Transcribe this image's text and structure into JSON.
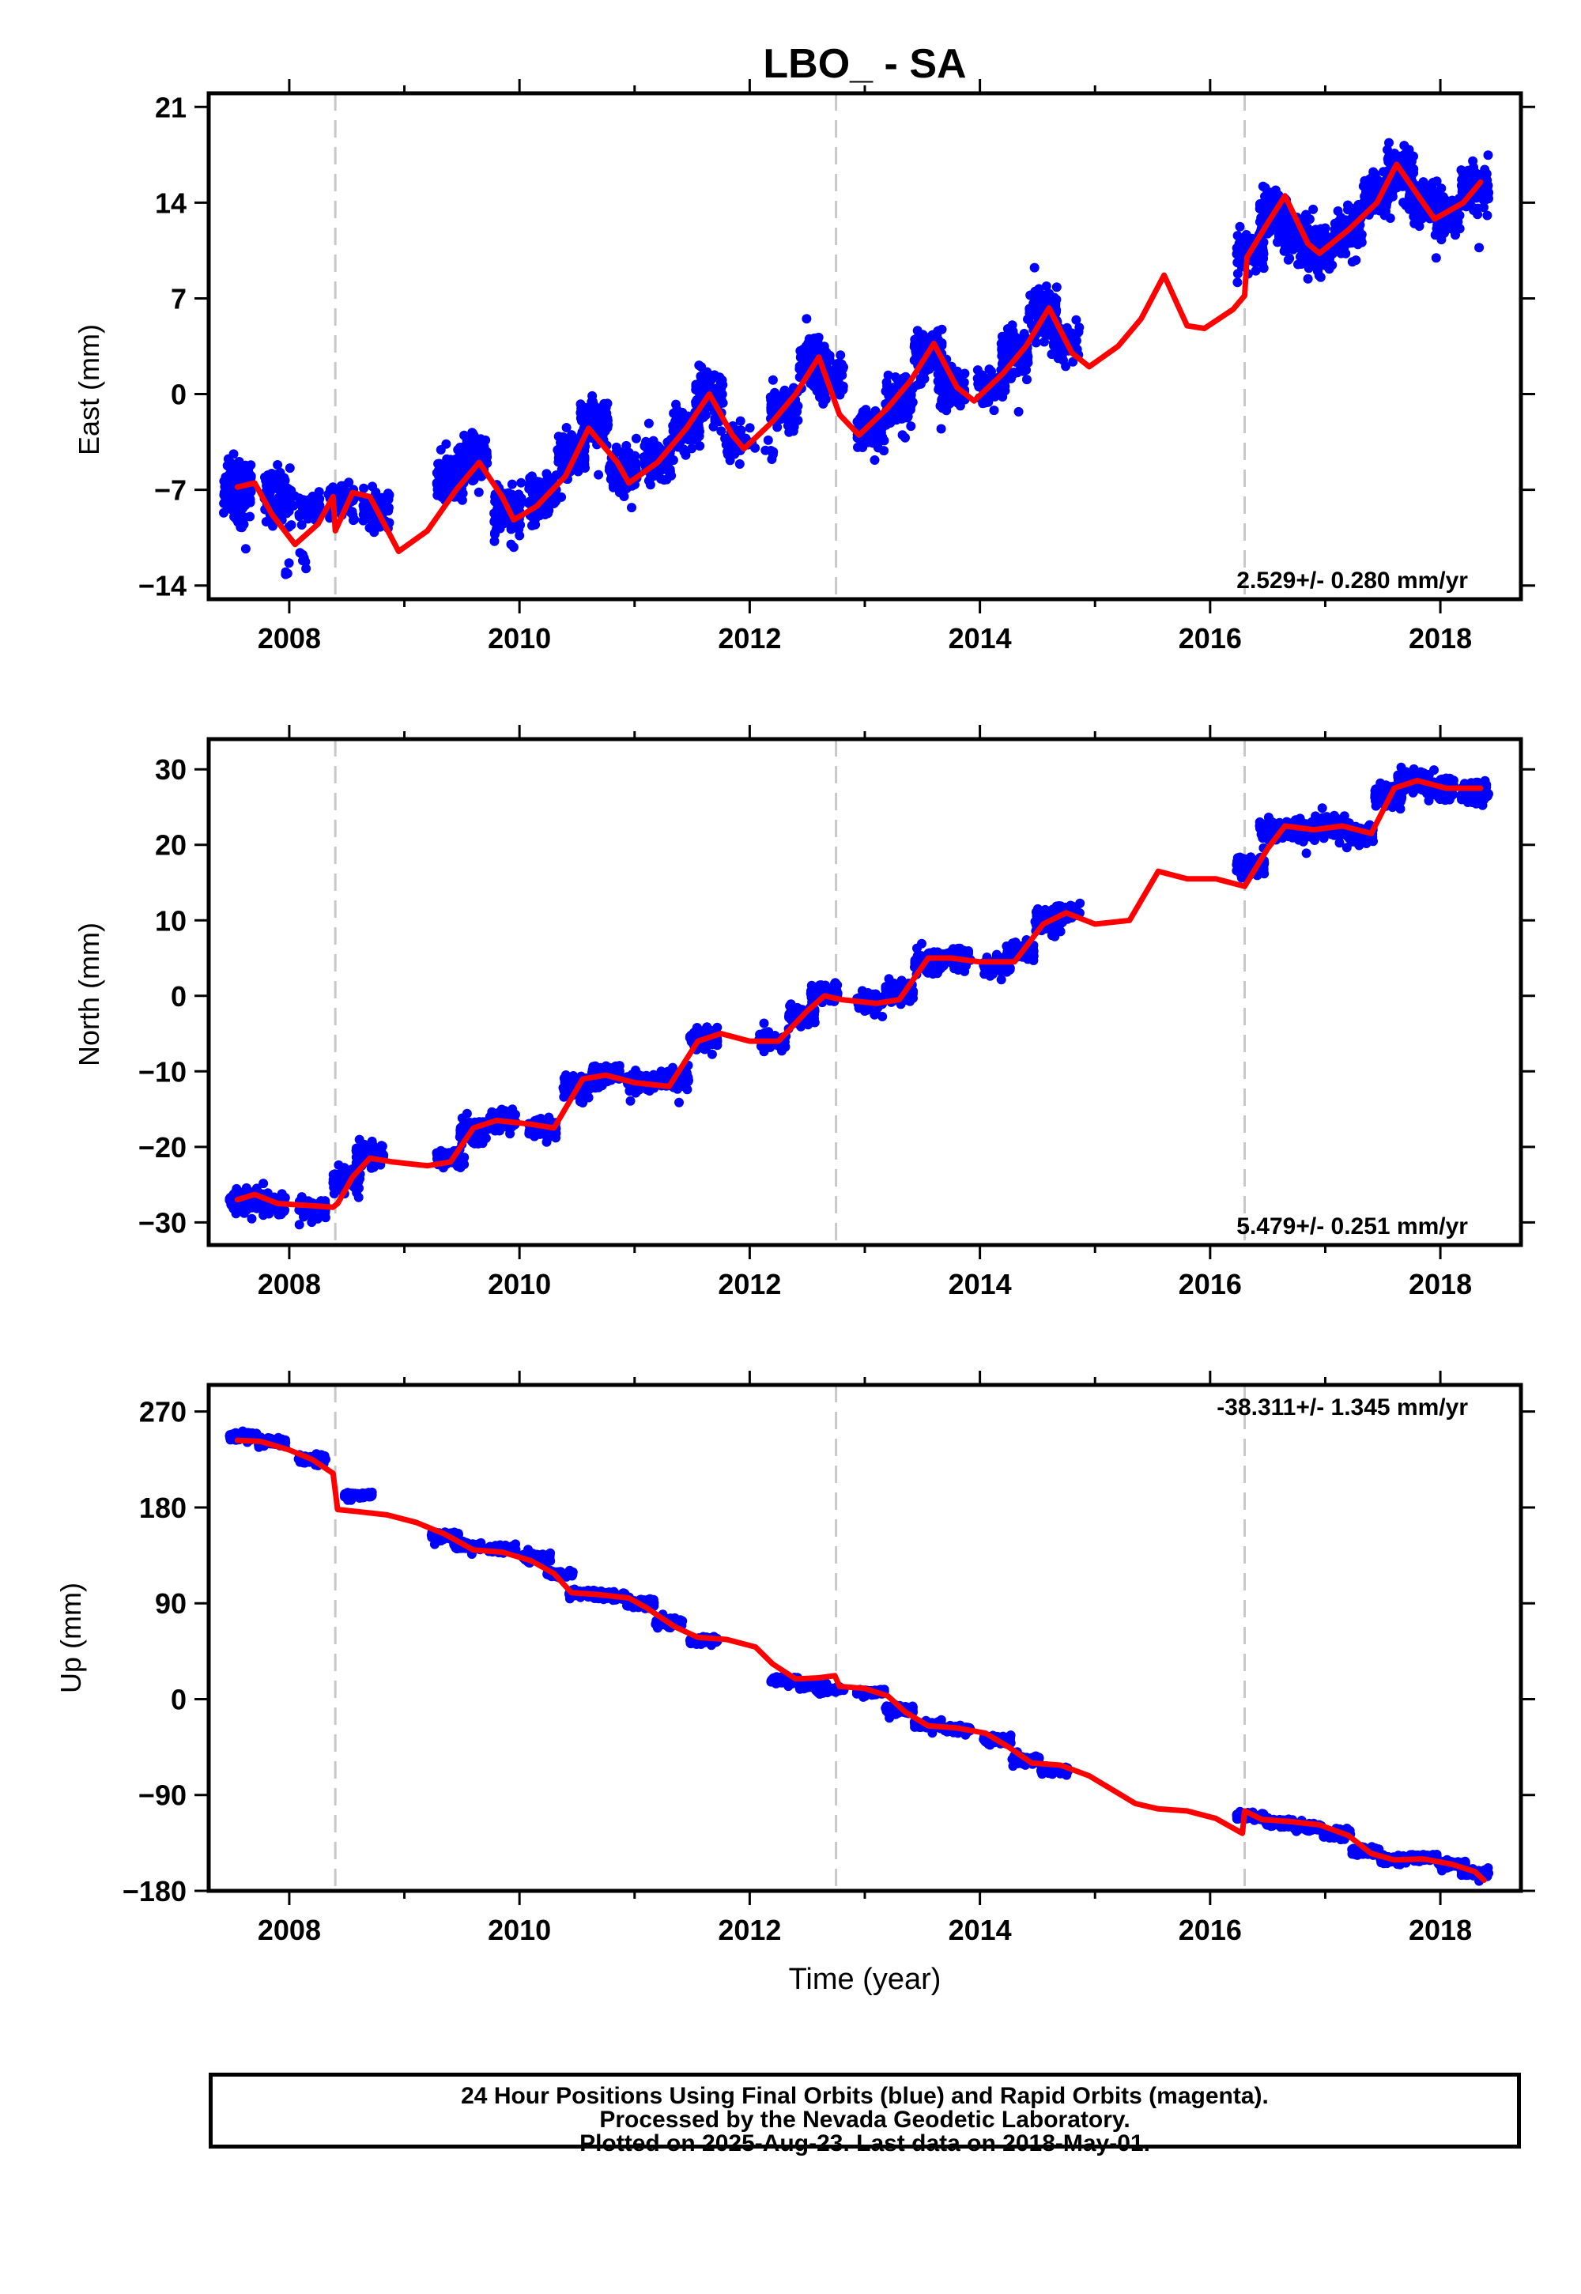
{
  "title": "LBO_ - SA",
  "xlabel": "Time (year)",
  "footer": {
    "line1": "24 Hour Positions Using Final Orbits (blue) and Rapid Orbits (magenta).",
    "line2": "Processed by the Nevada Geodetic Laboratory.",
    "line3": "Plotted on 2025-Aug-23. Last data on 2018-May-01."
  },
  "colors": {
    "final_orbits": "#0000ff",
    "model_fit": "#ff0000",
    "equipment_change": "#c8c8c8",
    "frame": "#000000"
  },
  "chart_data": [
    {
      "type": "scatter",
      "id": "east",
      "ylabel": "East (mm)",
      "xlim": [
        2007.3,
        2018.7
      ],
      "ylim": [
        -15,
        22
      ],
      "xticks": [
        2008,
        2010,
        2012,
        2014,
        2016,
        2018
      ],
      "yticks": [
        -14,
        -7,
        0,
        7,
        14,
        21
      ],
      "vlines": [
        2008.4,
        2012.75,
        2016.3
      ],
      "rate_text": "2.529+/- 0.280 mm/yr",
      "rate_position": "bottom-right",
      "model_knots": [
        [
          2007.55,
          -6.8
        ],
        [
          2007.7,
          -6.5
        ],
        [
          2007.85,
          -8.8
        ],
        [
          2008.05,
          -11.0
        ],
        [
          2008.25,
          -9.5
        ],
        [
          2008.38,
          -7.5
        ],
        [
          2008.4,
          -10.0
        ],
        [
          2008.55,
          -7.2
        ],
        [
          2008.7,
          -7.5
        ],
        [
          2008.95,
          -11.5
        ],
        [
          2009.2,
          -10.0
        ],
        [
          2009.45,
          -7.0
        ],
        [
          2009.65,
          -5.0
        ],
        [
          2009.85,
          -7.5
        ],
        [
          2009.95,
          -9.2
        ],
        [
          2010.15,
          -8.2
        ],
        [
          2010.4,
          -6.0
        ],
        [
          2010.6,
          -2.5
        ],
        [
          2010.85,
          -5.0
        ],
        [
          2010.95,
          -6.5
        ],
        [
          2011.2,
          -5.0
        ],
        [
          2011.45,
          -2.5
        ],
        [
          2011.65,
          0.0
        ],
        [
          2011.85,
          -3.0
        ],
        [
          2011.95,
          -4.0
        ],
        [
          2012.2,
          -2.0
        ],
        [
          2012.4,
          0.0
        ],
        [
          2012.6,
          2.7
        ],
        [
          2012.78,
          -1.5
        ],
        [
          2012.95,
          -3.0
        ],
        [
          2013.2,
          -1.0
        ],
        [
          2013.4,
          1.0
        ],
        [
          2013.6,
          3.7
        ],
        [
          2013.8,
          0.5
        ],
        [
          2013.95,
          -0.5
        ],
        [
          2014.2,
          1.5
        ],
        [
          2014.4,
          3.5
        ],
        [
          2014.6,
          6.3
        ],
        [
          2014.8,
          3.0
        ],
        [
          2014.95,
          2.0
        ],
        [
          2015.2,
          3.5
        ],
        [
          2015.4,
          5.5
        ],
        [
          2015.6,
          8.7
        ],
        [
          2015.8,
          5.0
        ],
        [
          2015.95,
          4.8
        ],
        [
          2016.2,
          6.2
        ],
        [
          2016.3,
          7.2
        ],
        [
          2016.32,
          10.0
        ],
        [
          2016.5,
          12.5
        ],
        [
          2016.65,
          14.5
        ],
        [
          2016.85,
          11.0
        ],
        [
          2016.95,
          10.3
        ],
        [
          2017.2,
          12.0
        ],
        [
          2017.45,
          14.0
        ],
        [
          2017.62,
          16.8
        ],
        [
          2017.85,
          14.0
        ],
        [
          2017.95,
          12.8
        ],
        [
          2018.2,
          14.0
        ],
        [
          2018.35,
          15.5
        ]
      ],
      "data_points": [
        [
          2007.55,
          -7.0,
          2.5,
          180
        ],
        [
          2007.9,
          -7.5,
          2.5,
          90
        ],
        [
          2008.05,
          -12.5,
          1.2,
          10
        ],
        [
          2008.15,
          -8.5,
          1.6,
          40
        ],
        [
          2008.45,
          -7.8,
          1.6,
          60
        ],
        [
          2008.75,
          -8.5,
          1.8,
          70
        ],
        [
          2009.4,
          -6.0,
          2.2,
          120
        ],
        [
          2009.6,
          -4.5,
          2.0,
          120
        ],
        [
          2009.9,
          -8.5,
          2.0,
          110
        ],
        [
          2010.2,
          -7.5,
          2.0,
          120
        ],
        [
          2010.45,
          -4.5,
          2.0,
          110
        ],
        [
          2010.65,
          -2.0,
          2.0,
          120
        ],
        [
          2010.9,
          -5.5,
          2.0,
          110
        ],
        [
          2011.2,
          -4.8,
          1.8,
          110
        ],
        [
          2011.45,
          -2.5,
          2.0,
          110
        ],
        [
          2011.65,
          -0.3,
          2.2,
          110
        ],
        [
          2011.9,
          -3.5,
          1.6,
          30
        ],
        [
          2012.1,
          -4.0,
          1.0,
          8
        ],
        [
          2012.3,
          -1.0,
          1.8,
          100
        ],
        [
          2012.55,
          2.5,
          2.0,
          120
        ],
        [
          2012.7,
          1.0,
          2.0,
          60
        ],
        [
          2013.05,
          -2.5,
          2.0,
          90
        ],
        [
          2013.3,
          -0.5,
          2.0,
          110
        ],
        [
          2013.55,
          3.0,
          2.2,
          120
        ],
        [
          2013.75,
          0.5,
          2.0,
          90
        ],
        [
          2014.1,
          0.5,
          2.0,
          70
        ],
        [
          2014.3,
          3.0,
          2.2,
          100
        ],
        [
          2014.55,
          6.0,
          2.2,
          120
        ],
        [
          2014.75,
          4.0,
          2.0,
          60
        ],
        [
          2016.35,
          10.5,
          2.0,
          100
        ],
        [
          2016.55,
          13.0,
          2.0,
          110
        ],
        [
          2016.75,
          11.5,
          2.0,
          110
        ],
        [
          2016.95,
          10.5,
          2.0,
          110
        ],
        [
          2017.2,
          12.0,
          2.0,
          110
        ],
        [
          2017.45,
          14.5,
          2.0,
          110
        ],
        [
          2017.65,
          16.5,
          2.0,
          110
        ],
        [
          2017.85,
          14.0,
          2.0,
          110
        ],
        [
          2018.05,
          13.0,
          2.0,
          90
        ],
        [
          2018.3,
          15.0,
          2.2,
          110
        ]
      ]
    },
    {
      "type": "scatter",
      "id": "north",
      "ylabel": "North (mm)",
      "xlim": [
        2007.3,
        2018.7
      ],
      "ylim": [
        -33,
        34
      ],
      "xticks": [
        2008,
        2010,
        2012,
        2014,
        2016,
        2018
      ],
      "yticks": [
        -30,
        -20,
        -10,
        0,
        10,
        20,
        30
      ],
      "vlines": [
        2008.4,
        2012.75,
        2016.3
      ],
      "rate_text": "5.479+/- 0.251 mm/yr",
      "rate_position": "bottom-right",
      "model_knots": [
        [
          2007.55,
          -27.0
        ],
        [
          2007.7,
          -26.3
        ],
        [
          2007.9,
          -27.5
        ],
        [
          2008.2,
          -27.8
        ],
        [
          2008.38,
          -28.0
        ],
        [
          2008.42,
          -27.5
        ],
        [
          2008.55,
          -24.0
        ],
        [
          2008.7,
          -21.5
        ],
        [
          2008.9,
          -22.0
        ],
        [
          2009.2,
          -22.5
        ],
        [
          2009.4,
          -22.0
        ],
        [
          2009.6,
          -17.5
        ],
        [
          2009.8,
          -16.5
        ],
        [
          2010.1,
          -17.0
        ],
        [
          2010.3,
          -17.5
        ],
        [
          2010.55,
          -11.0
        ],
        [
          2010.75,
          -10.5
        ],
        [
          2011.0,
          -11.5
        ],
        [
          2011.3,
          -12.0
        ],
        [
          2011.55,
          -6.0
        ],
        [
          2011.75,
          -5.0
        ],
        [
          2012.0,
          -6.0
        ],
        [
          2012.25,
          -6.0
        ],
        [
          2012.5,
          -2.0
        ],
        [
          2012.65,
          0.0
        ],
        [
          2012.8,
          -0.5
        ],
        [
          2013.1,
          -1.0
        ],
        [
          2013.3,
          -0.5
        ],
        [
          2013.55,
          5.0
        ],
        [
          2013.75,
          5.0
        ],
        [
          2014.0,
          4.5
        ],
        [
          2014.3,
          4.5
        ],
        [
          2014.55,
          9.5
        ],
        [
          2014.75,
          11.0
        ],
        [
          2015.0,
          9.5
        ],
        [
          2015.3,
          10.0
        ],
        [
          2015.55,
          16.5
        ],
        [
          2015.8,
          15.5
        ],
        [
          2016.05,
          15.5
        ],
        [
          2016.3,
          14.5
        ],
        [
          2016.5,
          19.5
        ],
        [
          2016.65,
          22.5
        ],
        [
          2016.9,
          22.0
        ],
        [
          2017.15,
          22.5
        ],
        [
          2017.4,
          21.5
        ],
        [
          2017.6,
          27.5
        ],
        [
          2017.8,
          28.5
        ],
        [
          2018.05,
          27.5
        ],
        [
          2018.35,
          27.5
        ]
      ],
      "data_points": [
        [
          2007.6,
          -27.0,
          1.8,
          110
        ],
        [
          2007.85,
          -27.5,
          1.8,
          90
        ],
        [
          2008.2,
          -28.2,
          1.8,
          70
        ],
        [
          2008.5,
          -24.5,
          2.0,
          70
        ],
        [
          2008.7,
          -21.0,
          1.8,
          90
        ],
        [
          2009.4,
          -21.5,
          1.6,
          60
        ],
        [
          2009.6,
          -18.0,
          1.6,
          120
        ],
        [
          2009.85,
          -16.5,
          1.6,
          110
        ],
        [
          2010.2,
          -17.5,
          1.6,
          110
        ],
        [
          2010.5,
          -12.0,
          1.6,
          110
        ],
        [
          2010.75,
          -10.5,
          1.6,
          110
        ],
        [
          2011.05,
          -11.5,
          1.6,
          110
        ],
        [
          2011.35,
          -11.0,
          1.6,
          110
        ],
        [
          2011.6,
          -5.5,
          1.6,
          110
        ],
        [
          2012.2,
          -6.0,
          1.6,
          40
        ],
        [
          2012.45,
          -2.5,
          1.6,
          100
        ],
        [
          2012.65,
          0.5,
          1.6,
          60
        ],
        [
          2013.05,
          -1.0,
          1.6,
          60
        ],
        [
          2013.3,
          0.5,
          1.6,
          110
        ],
        [
          2013.55,
          4.5,
          1.6,
          110
        ],
        [
          2013.8,
          5.0,
          1.6,
          80
        ],
        [
          2014.15,
          4.0,
          1.6,
          70
        ],
        [
          2014.35,
          6.0,
          1.6,
          90
        ],
        [
          2014.6,
          10.0,
          1.6,
          110
        ],
        [
          2014.75,
          11.0,
          1.6,
          50
        ],
        [
          2016.35,
          17.0,
          1.8,
          100
        ],
        [
          2016.55,
          22.0,
          1.6,
          110
        ],
        [
          2016.8,
          22.0,
          1.6,
          110
        ],
        [
          2017.05,
          22.5,
          1.6,
          110
        ],
        [
          2017.3,
          21.5,
          1.6,
          110
        ],
        [
          2017.55,
          26.5,
          1.6,
          110
        ],
        [
          2017.75,
          28.5,
          1.6,
          110
        ],
        [
          2018.0,
          27.5,
          1.6,
          110
        ],
        [
          2018.3,
          27.0,
          1.6,
          100
        ]
      ]
    },
    {
      "type": "scatter",
      "id": "up",
      "ylabel": "Up (mm)",
      "xlim": [
        2007.3,
        2018.7
      ],
      "ylim": [
        -180,
        295
      ],
      "xticks": [
        2008,
        2010,
        2012,
        2014,
        2016,
        2018
      ],
      "yticks": [
        -180,
        -90,
        0,
        90,
        180,
        270
      ],
      "vlines": [
        2008.4,
        2012.75,
        2016.3
      ],
      "rate_text": "-38.311+/- 1.345 mm/yr",
      "rate_position": "top-right",
      "model_knots": [
        [
          2007.55,
          243
        ],
        [
          2007.75,
          242
        ],
        [
          2008.0,
          234
        ],
        [
          2008.2,
          225
        ],
        [
          2008.38,
          212
        ],
        [
          2008.42,
          178
        ],
        [
          2008.6,
          176
        ],
        [
          2008.85,
          173
        ],
        [
          2009.1,
          166
        ],
        [
          2009.35,
          155
        ],
        [
          2009.6,
          140
        ],
        [
          2009.85,
          138
        ],
        [
          2010.1,
          130
        ],
        [
          2010.3,
          118
        ],
        [
          2010.45,
          100
        ],
        [
          2010.7,
          98
        ],
        [
          2010.95,
          95
        ],
        [
          2011.1,
          86
        ],
        [
          2011.35,
          68
        ],
        [
          2011.55,
          58
        ],
        [
          2011.8,
          56
        ],
        [
          2012.05,
          49
        ],
        [
          2012.2,
          33
        ],
        [
          2012.4,
          19
        ],
        [
          2012.6,
          20
        ],
        [
          2012.74,
          22
        ],
        [
          2012.78,
          12
        ],
        [
          2013.0,
          10
        ],
        [
          2013.2,
          3
        ],
        [
          2013.35,
          -12
        ],
        [
          2013.55,
          -25
        ],
        [
          2013.8,
          -27
        ],
        [
          2014.05,
          -32
        ],
        [
          2014.25,
          -45
        ],
        [
          2014.45,
          -60
        ],
        [
          2014.7,
          -62
        ],
        [
          2014.95,
          -72
        ],
        [
          2015.15,
          -85
        ],
        [
          2015.35,
          -98
        ],
        [
          2015.55,
          -103
        ],
        [
          2015.8,
          -105
        ],
        [
          2016.05,
          -112
        ],
        [
          2016.28,
          -126
        ],
        [
          2016.3,
          -105
        ],
        [
          2016.45,
          -113
        ],
        [
          2016.7,
          -115
        ],
        [
          2016.95,
          -118
        ],
        [
          2017.2,
          -128
        ],
        [
          2017.4,
          -145
        ],
        [
          2017.6,
          -151
        ],
        [
          2017.85,
          -150
        ],
        [
          2018.1,
          -155
        ],
        [
          2018.3,
          -162
        ],
        [
          2018.38,
          -170
        ]
      ],
      "data_points": [
        [
          2007.6,
          247,
          5,
          110
        ],
        [
          2007.85,
          241,
          5,
          80
        ],
        [
          2008.2,
          226,
          5,
          60
        ],
        [
          2008.6,
          191,
          4,
          80
        ],
        [
          2009.35,
          153,
          5,
          80
        ],
        [
          2009.55,
          144,
          4,
          110
        ],
        [
          2009.85,
          141,
          4,
          110
        ],
        [
          2010.15,
          133,
          5,
          110
        ],
        [
          2010.35,
          118,
          4,
          60
        ],
        [
          2010.55,
          99,
          4,
          110
        ],
        [
          2010.8,
          97,
          4,
          110
        ],
        [
          2011.05,
          90,
          5,
          110
        ],
        [
          2011.3,
          72,
          5,
          80
        ],
        [
          2011.6,
          55,
          4,
          110
        ],
        [
          2012.3,
          18,
          5,
          60
        ],
        [
          2012.55,
          13,
          4,
          110
        ],
        [
          2012.7,
          9,
          4,
          50
        ],
        [
          2013.05,
          6,
          4,
          80
        ],
        [
          2013.3,
          -10,
          5,
          110
        ],
        [
          2013.55,
          -24,
          4,
          110
        ],
        [
          2013.8,
          -28,
          4,
          80
        ],
        [
          2014.15,
          -38,
          5,
          80
        ],
        [
          2014.4,
          -57,
          5,
          100
        ],
        [
          2014.65,
          -67,
          4,
          90
        ],
        [
          2016.35,
          -110,
          4,
          80
        ],
        [
          2016.6,
          -116,
          4,
          110
        ],
        [
          2016.85,
          -120,
          4,
          110
        ],
        [
          2017.1,
          -126,
          5,
          110
        ],
        [
          2017.35,
          -143,
          5,
          110
        ],
        [
          2017.6,
          -150,
          4,
          110
        ],
        [
          2017.85,
          -149,
          4,
          110
        ],
        [
          2018.1,
          -155,
          4,
          100
        ],
        [
          2018.3,
          -163,
          4,
          100
        ]
      ]
    }
  ]
}
